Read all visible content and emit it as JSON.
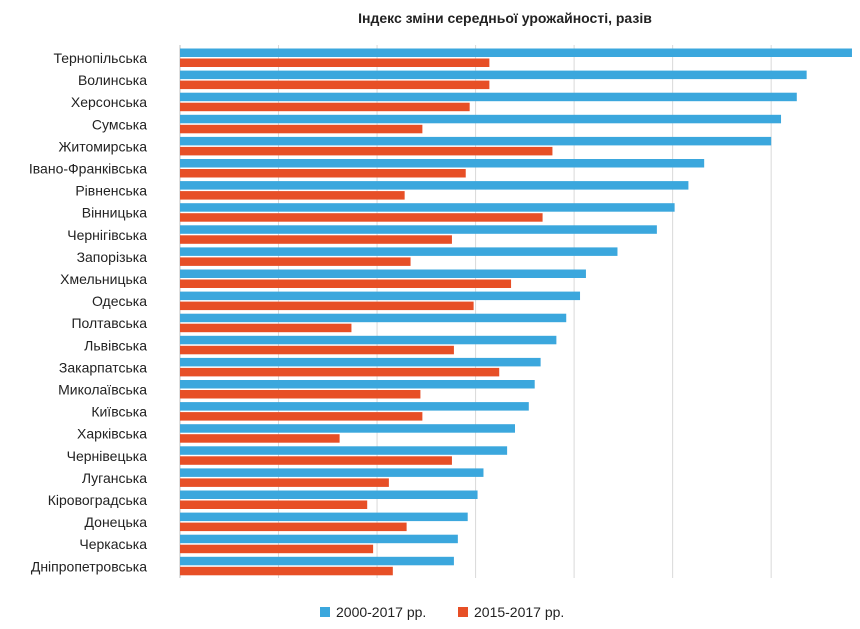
{
  "chart_data": {
    "type": "bar",
    "orientation": "horizontal",
    "title": "Індекс зміни середньої урожайності, разів",
    "xlabel": "",
    "ylabel": "",
    "xlim": [
      0,
      3.4
    ],
    "grid": true,
    "legend_position": "bottom",
    "categories": [
      "Тернопільська",
      "Волинська",
      "Херсонська",
      "Сумська",
      "Житомирська",
      "Івано-Франківська",
      "Рівненська",
      "Вінницька",
      "Чернігівська",
      "Запорізька",
      "Хмельницька",
      "Одеська",
      "Полтавська",
      "Львівська",
      "Закарпатська",
      "Миколаївська",
      "Київська",
      "Харківська",
      "Чернівецька",
      "Луганська",
      "Кіровоградська",
      "Донецька",
      "Черкаська",
      "Дніпропетровська"
    ],
    "series": [
      {
        "name": "2000-2017 рр.",
        "color": "#3ba7dd",
        "values": [
          3.41,
          3.18,
          3.13,
          3.05,
          3.0,
          2.66,
          2.58,
          2.51,
          2.42,
          2.22,
          2.06,
          2.03,
          1.96,
          1.91,
          1.83,
          1.8,
          1.77,
          1.7,
          1.66,
          1.54,
          1.51,
          1.46,
          1.41,
          1.39
        ]
      },
      {
        "name": "2015-2017 рр.",
        "color": "#e74f26",
        "values": [
          1.57,
          1.57,
          1.47,
          1.23,
          1.89,
          1.45,
          1.14,
          1.84,
          1.38,
          1.17,
          1.68,
          1.49,
          0.87,
          1.39,
          1.62,
          1.22,
          1.23,
          0.81,
          1.38,
          1.06,
          0.95,
          1.15,
          0.98,
          1.08
        ]
      }
    ]
  }
}
